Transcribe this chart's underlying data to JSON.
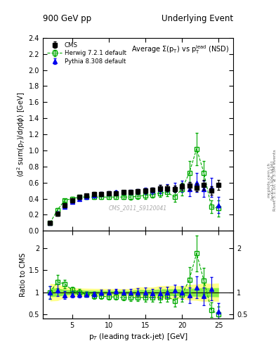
{
  "title_left": "900 GeV pp",
  "title_right": "Underlying Event",
  "plot_title": "Average $\\Sigma$(p$_\\mathrm{T}$) vs p$_\\mathrm{T}^\\mathrm{lead}$ (NSD)",
  "ylabel_main": "$\\langle$d$^2$ sum(p$_T$)/d$\\eta$d$\\phi$$\\rangle$ [GeV]",
  "ylabel_ratio": "Ratio to CMS",
  "xlabel": "p$_T$ (leading track-jet) [GeV]",
  "watermark": "CMS_2011_S9120041",
  "rivet_label": "Rivet 3.1.10, ≥ 3.3M events",
  "arxiv_label": "[arXiv:1306.3436]",
  "mcplots_label": "mcplots.cern.ch",
  "cms_x": [
    2.0,
    3.0,
    4.0,
    5.0,
    6.0,
    7.0,
    8.0,
    9.0,
    10.0,
    11.0,
    12.0,
    13.0,
    14.0,
    15.0,
    16.0,
    17.0,
    18.0,
    19.0,
    20.0,
    21.0,
    22.0,
    23.0,
    24.0,
    25.0
  ],
  "cms_y": [
    0.1,
    0.21,
    0.32,
    0.38,
    0.42,
    0.44,
    0.46,
    0.46,
    0.47,
    0.47,
    0.48,
    0.48,
    0.49,
    0.5,
    0.51,
    0.53,
    0.53,
    0.52,
    0.55,
    0.56,
    0.54,
    0.57,
    0.5,
    0.57
  ],
  "cms_yerr": [
    0.01,
    0.02,
    0.02,
    0.02,
    0.02,
    0.02,
    0.02,
    0.02,
    0.02,
    0.02,
    0.02,
    0.02,
    0.03,
    0.03,
    0.03,
    0.04,
    0.04,
    0.04,
    0.04,
    0.05,
    0.05,
    0.06,
    0.05,
    0.06
  ],
  "herwig_x": [
    2.0,
    3.0,
    4.0,
    5.0,
    6.0,
    7.0,
    8.0,
    9.0,
    10.0,
    11.0,
    12.0,
    13.0,
    14.0,
    15.0,
    16.0,
    17.0,
    18.0,
    19.0,
    20.0,
    21.0,
    22.0,
    23.0,
    24.0,
    25.0
  ],
  "herwig_y": [
    0.1,
    0.26,
    0.38,
    0.4,
    0.42,
    0.42,
    0.42,
    0.42,
    0.42,
    0.42,
    0.42,
    0.42,
    0.43,
    0.44,
    0.45,
    0.47,
    0.48,
    0.42,
    0.52,
    0.72,
    1.02,
    0.72,
    0.3,
    0.28
  ],
  "herwig_yerr": [
    0.01,
    0.02,
    0.02,
    0.02,
    0.02,
    0.02,
    0.02,
    0.02,
    0.02,
    0.02,
    0.02,
    0.03,
    0.03,
    0.04,
    0.04,
    0.05,
    0.05,
    0.06,
    0.08,
    0.15,
    0.2,
    0.15,
    0.08,
    0.1
  ],
  "pythia_x": [
    2.0,
    3.0,
    4.0,
    5.0,
    6.0,
    7.0,
    8.0,
    9.0,
    10.0,
    11.0,
    12.0,
    13.0,
    14.0,
    15.0,
    16.0,
    17.0,
    18.0,
    19.0,
    20.0,
    21.0,
    22.0,
    23.0,
    24.0,
    25.0
  ],
  "pythia_y": [
    0.1,
    0.22,
    0.3,
    0.36,
    0.4,
    0.42,
    0.44,
    0.46,
    0.47,
    0.48,
    0.48,
    0.48,
    0.49,
    0.5,
    0.5,
    0.52,
    0.53,
    0.54,
    0.55,
    0.52,
    0.6,
    0.52,
    0.54,
    0.32
  ],
  "pythia_yerr": [
    0.01,
    0.02,
    0.02,
    0.02,
    0.02,
    0.02,
    0.02,
    0.02,
    0.02,
    0.02,
    0.02,
    0.03,
    0.03,
    0.04,
    0.04,
    0.05,
    0.05,
    0.06,
    0.07,
    0.09,
    0.12,
    0.1,
    0.12,
    0.1
  ],
  "ylim_main": [
    0.0,
    2.4
  ],
  "ylim_ratio": [
    0.4,
    2.4
  ],
  "xlim": [
    1.0,
    27.0
  ],
  "cms_color": "#000000",
  "herwig_color": "#00aa00",
  "pythia_color": "#0000ee",
  "band_yellow": "#ffff88",
  "band_green": "#88ee44"
}
